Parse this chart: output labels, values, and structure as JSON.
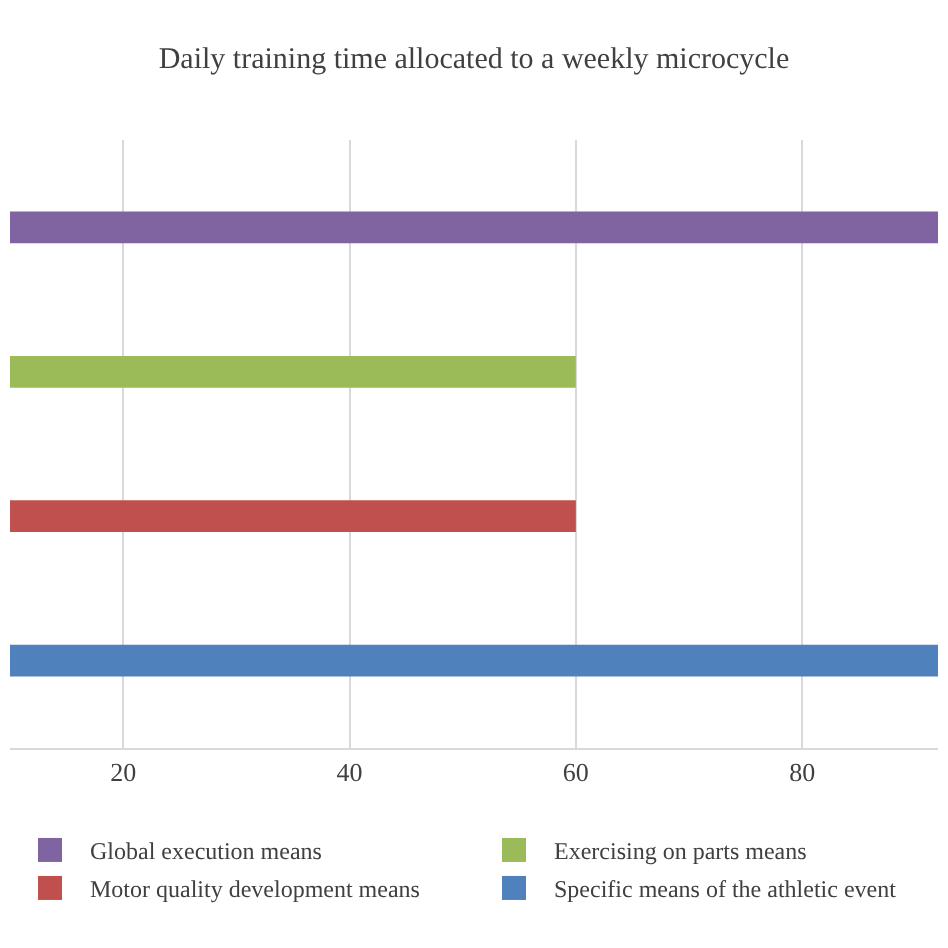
{
  "chart_data": {
    "type": "bar",
    "orientation": "horizontal",
    "title": "Daily training time allocated to a weekly microcycle",
    "categories": [
      null
    ],
    "series": [
      {
        "name": "Global execution means",
        "color": "#8064a2",
        "values": [
          92
        ]
      },
      {
        "name": "Exercising on parts means",
        "color": "#9bbb59",
        "values": [
          60
        ]
      },
      {
        "name": "Motor quality development means",
        "color": "#c0504d",
        "values": [
          60
        ]
      },
      {
        "name": "Specific means of the athletic event",
        "color": "#4f81bd",
        "values": [
          92
        ]
      }
    ],
    "xlim": [
      10,
      92
    ],
    "xticks": [
      20,
      40,
      60,
      80
    ],
    "grid": "x",
    "legend": "bottom"
  }
}
